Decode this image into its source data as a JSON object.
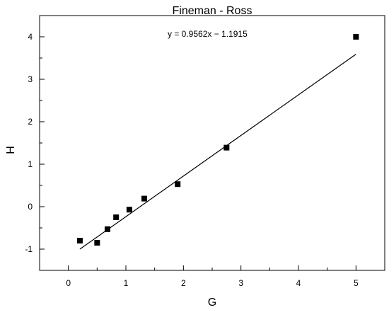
{
  "chart_data": {
    "type": "scatter",
    "title": "Fineman - Ross",
    "xlabel": "G",
    "ylabel": "H",
    "xlim": [
      -0.5,
      5.5
    ],
    "ylim": [
      -1.5,
      4.5
    ],
    "x_ticks": [
      0,
      1,
      2,
      3,
      4,
      5
    ],
    "y_ticks": [
      -1,
      0,
      1,
      2,
      3,
      4
    ],
    "grid": false,
    "series": [
      {
        "x": [
          0.2,
          0.5,
          0.68,
          0.83,
          1.06,
          1.32,
          1.9,
          2.75,
          5.0
        ],
        "y": [
          -0.8,
          -0.85,
          -0.53,
          -0.25,
          -0.07,
          0.19,
          0.53,
          1.39,
          4.0
        ],
        "marker": "square",
        "color": "#000000"
      }
    ],
    "fit_line": {
      "equation": "y = 0.9562x − 1.1915",
      "slope": 0.9562,
      "intercept": -1.1915,
      "x_range": [
        0.2,
        5.0
      ],
      "color": "#000000"
    }
  }
}
